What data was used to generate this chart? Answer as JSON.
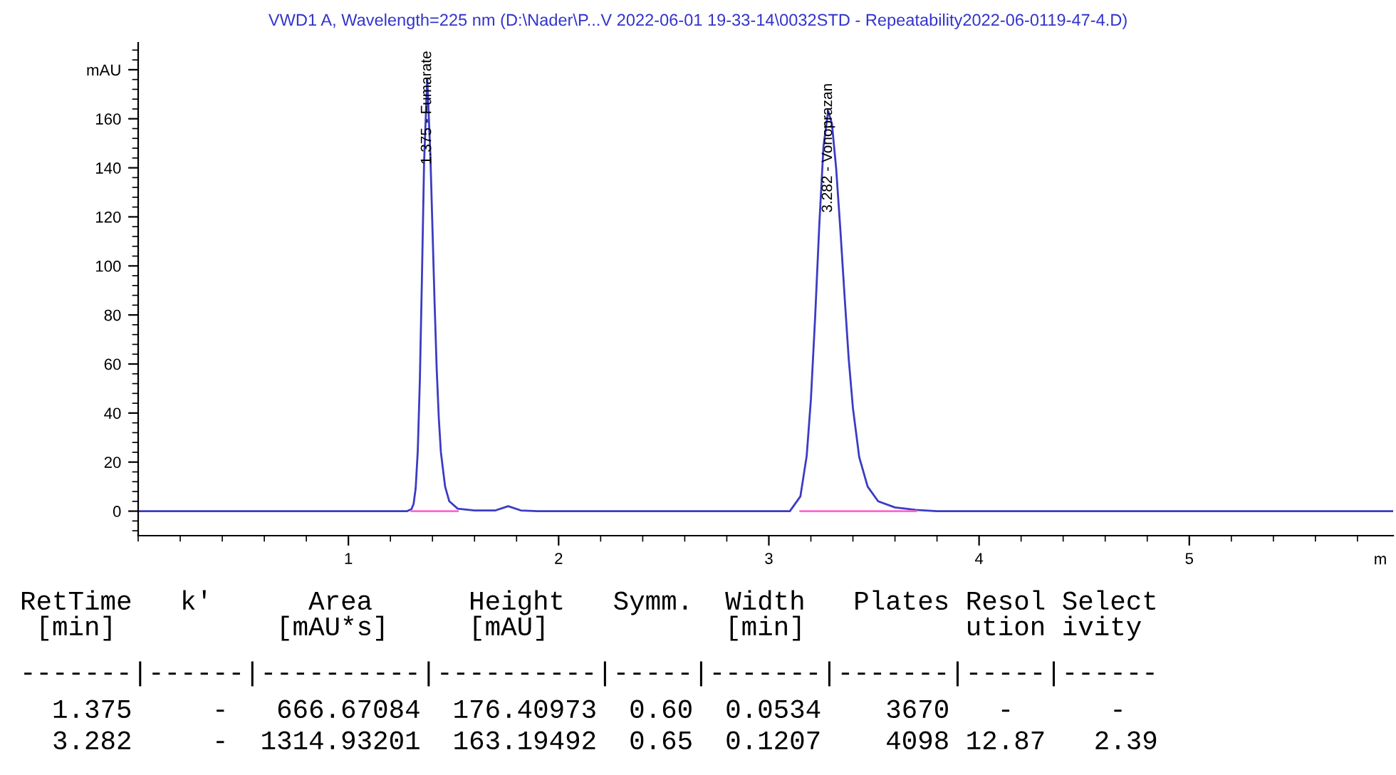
{
  "chart_data": {
    "type": "line",
    "title": "VWD1 A, Wavelength=225 nm (D:\\Nader\\P...V 2022-06-01 19-33-14\\0032STD - Repeatability2022-06-0119-47-4.D)",
    "xlabel": "m",
    "xlim": [
      0,
      5.97
    ],
    "xticks": [
      1,
      2,
      3,
      4,
      5
    ],
    "ylim": [
      -10,
      191
    ],
    "yticks": [
      0,
      20,
      40,
      60,
      80,
      100,
      120,
      140,
      160,
      {
        "value": 180,
        "label": "mAU"
      }
    ],
    "grid": false,
    "marker": "none",
    "line_style": "solid",
    "series": [
      {
        "color": "#3b3bc4",
        "x": [
          0,
          1.28,
          1.3,
          1.31,
          1.32,
          1.33,
          1.34,
          1.35,
          1.36,
          1.375,
          1.39,
          1.4,
          1.41,
          1.42,
          1.43,
          1.44,
          1.46,
          1.48,
          1.52,
          1.6,
          1.7,
          1.76,
          1.82,
          1.9,
          3.1,
          3.15,
          3.18,
          3.2,
          3.22,
          3.24,
          3.26,
          3.282,
          3.3,
          3.32,
          3.34,
          3.36,
          3.38,
          3.4,
          3.43,
          3.47,
          3.52,
          3.6,
          3.7,
          3.8,
          5.97
        ],
        "values": [
          0,
          0,
          0.8,
          2.9,
          9.3,
          24.6,
          53.6,
          96,
          142,
          176.4,
          145,
          115,
          85,
          58,
          38,
          24,
          10,
          4,
          1,
          0.3,
          0.3,
          2,
          0.3,
          0,
          0,
          6,
          22.5,
          45.5,
          78.7,
          116.7,
          148.8,
          163.2,
          158,
          140,
          115,
          88,
          62,
          42,
          22,
          10,
          4,
          1.5,
          0.5,
          0,
          0
        ]
      },
      {
        "color": "#ff66cc",
        "x": [
          1.3,
          1.52
        ],
        "values": [
          0,
          0
        ]
      },
      {
        "color": "#ff66cc",
        "x": [
          3.15,
          3.7
        ],
        "values": [
          0,
          0
        ]
      }
    ],
    "annotations": [
      {
        "text": "1.375 - Fumarate",
        "x": 1.375,
        "y": 176.4
      },
      {
        "text": "3.282 - Vonoprazan",
        "x": 3.282,
        "y": 163.2
      },
      "RetTime   k'      Area      Height   Symm.  Width   Plates Resol Select",
      " [min]          [mAU*s]     [mAU]           [min]          ution ivity",
      "-------|------|----------|----------|-----|-------|-------|-----|------",
      "  1.375     -   666.67084  176.40973  0.60  0.0534    3670   -      -",
      "  3.282     -  1314.93201  163.19492  0.65  0.1207    4098 12.87   2.39"
    ]
  }
}
